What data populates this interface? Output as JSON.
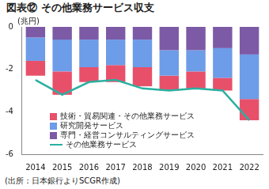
{
  "chart_data": {
    "type": "bar",
    "title": "図表⑫ その他業務サービス収支",
    "ylabel": "(兆円)",
    "source": "(出所：日本銀行よりSCGR作成)",
    "categories": [
      "2014",
      "2015",
      "2016",
      "2017",
      "2018",
      "2019",
      "2020",
      "2021",
      "2022"
    ],
    "stacked": true,
    "grid": false,
    "legend": "lower left",
    "ylim": [
      -6,
      0
    ],
    "yticks": [
      -6,
      -4,
      -2,
      0
    ],
    "series": [
      {
        "name": "技術・貿易関連・その他業務サービス",
        "type": "bar",
        "color": "#e8506a",
        "values": [
          -0.7,
          -1.1,
          -0.7,
          -0.8,
          -0.9,
          -0.7,
          -0.8,
          -0.6,
          -1.0
        ]
      },
      {
        "name": "研究開発サービス",
        "type": "bar",
        "color": "#6d9ce8",
        "values": [
          -1.1,
          -1.5,
          -1.3,
          -1.2,
          -1.3,
          -1.2,
          -1.0,
          -1.4,
          -2.1
        ]
      },
      {
        "name": "専門・経営コンサルティングサービス",
        "type": "bar",
        "color": "#7c5aa6",
        "values": [
          -0.5,
          -0.6,
          -0.6,
          -0.6,
          -0.6,
          -1.1,
          -1.1,
          -1.0,
          -1.3
        ]
      },
      {
        "name": "その他業務サービス",
        "type": "line",
        "color": "#2ab0a0",
        "marker": "none",
        "line_style": "solid",
        "values": [
          -2.5,
          -3.2,
          -2.6,
          -2.5,
          -2.9,
          -3.0,
          -2.9,
          -3.0,
          -4.4
        ]
      }
    ]
  }
}
